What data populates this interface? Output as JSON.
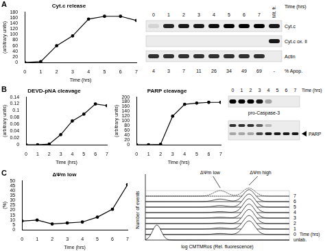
{
  "panel_labels": [
    "A",
    "B",
    "C"
  ],
  "chart_data": [
    {
      "type": "line",
      "title": "Cyt.c release",
      "x_label": "Time (hrs)",
      "y_label": "(arbitrary units)",
      "x": [
        0,
        1,
        2,
        3,
        4,
        5,
        6,
        7
      ],
      "values": [
        0,
        3,
        60,
        95,
        155,
        165,
        165,
        150
      ],
      "xlim": [
        0,
        7
      ],
      "xticks": [
        0,
        1,
        2,
        3,
        4,
        5,
        6,
        7
      ],
      "ylim": [
        0,
        180
      ],
      "yticks": [
        0,
        20,
        40,
        60,
        80,
        100,
        120,
        140,
        160,
        180
      ],
      "color": "#000000",
      "marker": "circle",
      "grid": false
    },
    {
      "type": "line",
      "title": "DEVD-pNA cleavage",
      "x_label": "Time (hrs)",
      "y_label": "(arbitrary units)",
      "x": [
        0,
        1,
        2,
        3,
        4,
        5,
        6,
        7
      ],
      "values": [
        0,
        0,
        0.002,
        0.03,
        0.07,
        0.09,
        0.12,
        0.115
      ],
      "xlim": [
        0,
        7
      ],
      "xticks": [
        0,
        1,
        2,
        3,
        4,
        5,
        6,
        7
      ],
      "ylim": [
        0,
        0.14
      ],
      "yticks": [
        0,
        0.02,
        0.04,
        0.06,
        0.08,
        0.1,
        0.12,
        0.14
      ],
      "color": "#000000",
      "marker": "circle",
      "grid": false
    },
    {
      "type": "line",
      "title": "PARP cleavage",
      "x_label": "Time (hrs)",
      "y_label": "(arbitrary units)",
      "x": [
        0,
        1,
        2,
        3,
        4,
        5,
        6,
        7
      ],
      "values": [
        0,
        0,
        2,
        120,
        170,
        175,
        178,
        178
      ],
      "xlim": [
        0,
        7
      ],
      "xticks": [
        0,
        1,
        2,
        3,
        4,
        5,
        6,
        7
      ],
      "ylim": [
        0,
        200
      ],
      "yticks": [
        0,
        20,
        40,
        60,
        80,
        100,
        120,
        140,
        160,
        180,
        200
      ],
      "color": "#000000",
      "marker": "circle",
      "grid": false
    },
    {
      "type": "line",
      "title": "ΔΨm low",
      "x_label": "Time (hrs)",
      "y_label": "(%)",
      "x": [
        0,
        1,
        2,
        3,
        4,
        5,
        6,
        7
      ],
      "values": [
        9,
        10,
        6,
        7,
        8,
        13,
        21,
        46
      ],
      "xlim": [
        0,
        7
      ],
      "xticks": [
        0,
        1,
        2,
        3,
        4,
        5,
        6,
        7
      ],
      "ylim": [
        0,
        50
      ],
      "yticks": [
        0,
        5,
        10,
        15,
        20,
        25,
        30,
        35,
        40,
        45,
        50
      ],
      "color": "#000000",
      "marker": "circle",
      "grid": false
    }
  ],
  "blots": [
    {
      "panel": "A",
      "column_title": "Time (hrs)",
      "columns": [
        "0",
        "1",
        "2",
        "3",
        "4",
        "5",
        "6",
        "7",
        "Mit. fr."
      ],
      "rows": [
        {
          "name": "Cyt.c",
          "intensity": [
            0.1,
            0.85,
            0.9,
            0.9,
            0.95,
            1,
            1,
            1,
            0.9
          ]
        },
        {
          "name": "Cyt.c ox. II",
          "intensity": [
            0,
            0,
            0,
            0,
            0,
            0,
            0,
            0,
            0.9
          ]
        },
        {
          "name": "Actin",
          "intensity": [
            0.8,
            0.8,
            0.8,
            0.8,
            0.8,
            0.8,
            0.8,
            0.8,
            0
          ]
        }
      ],
      "footer": {
        "name": "% Apop.",
        "values": [
          4,
          3,
          7,
          11,
          26,
          34,
          49,
          69,
          "-"
        ]
      }
    },
    {
      "panel": "B",
      "column_title": "Time (hrs)",
      "columns": [
        "0",
        "1",
        "2",
        "3",
        "4",
        "5",
        "6",
        "7"
      ],
      "rows": [
        {
          "name": "pro-Caspase-3",
          "intensity": [
            1,
            1,
            1,
            0.9,
            0.3,
            0,
            0,
            0
          ]
        },
        {
          "name": "PARP",
          "upper": [
            0.8,
            0.8,
            0.8,
            0.6,
            0.2,
            0,
            0,
            0
          ],
          "lower": [
            0.3,
            0.3,
            0.3,
            0.7,
            0.9,
            0.9,
            0.9,
            0.9
          ]
        }
      ]
    }
  ],
  "histogram": {
    "x_label": "log CMTMRos (Rel. fluorescence)",
    "y_label": "Number of events",
    "row_title": "Time (hrs)",
    "rows": [
      "unlab.",
      "0",
      "1",
      "2",
      "3",
      "4",
      "5",
      "6",
      "7"
    ],
    "low_label": "ΔΨm low",
    "high_label": "ΔΨm high"
  }
}
